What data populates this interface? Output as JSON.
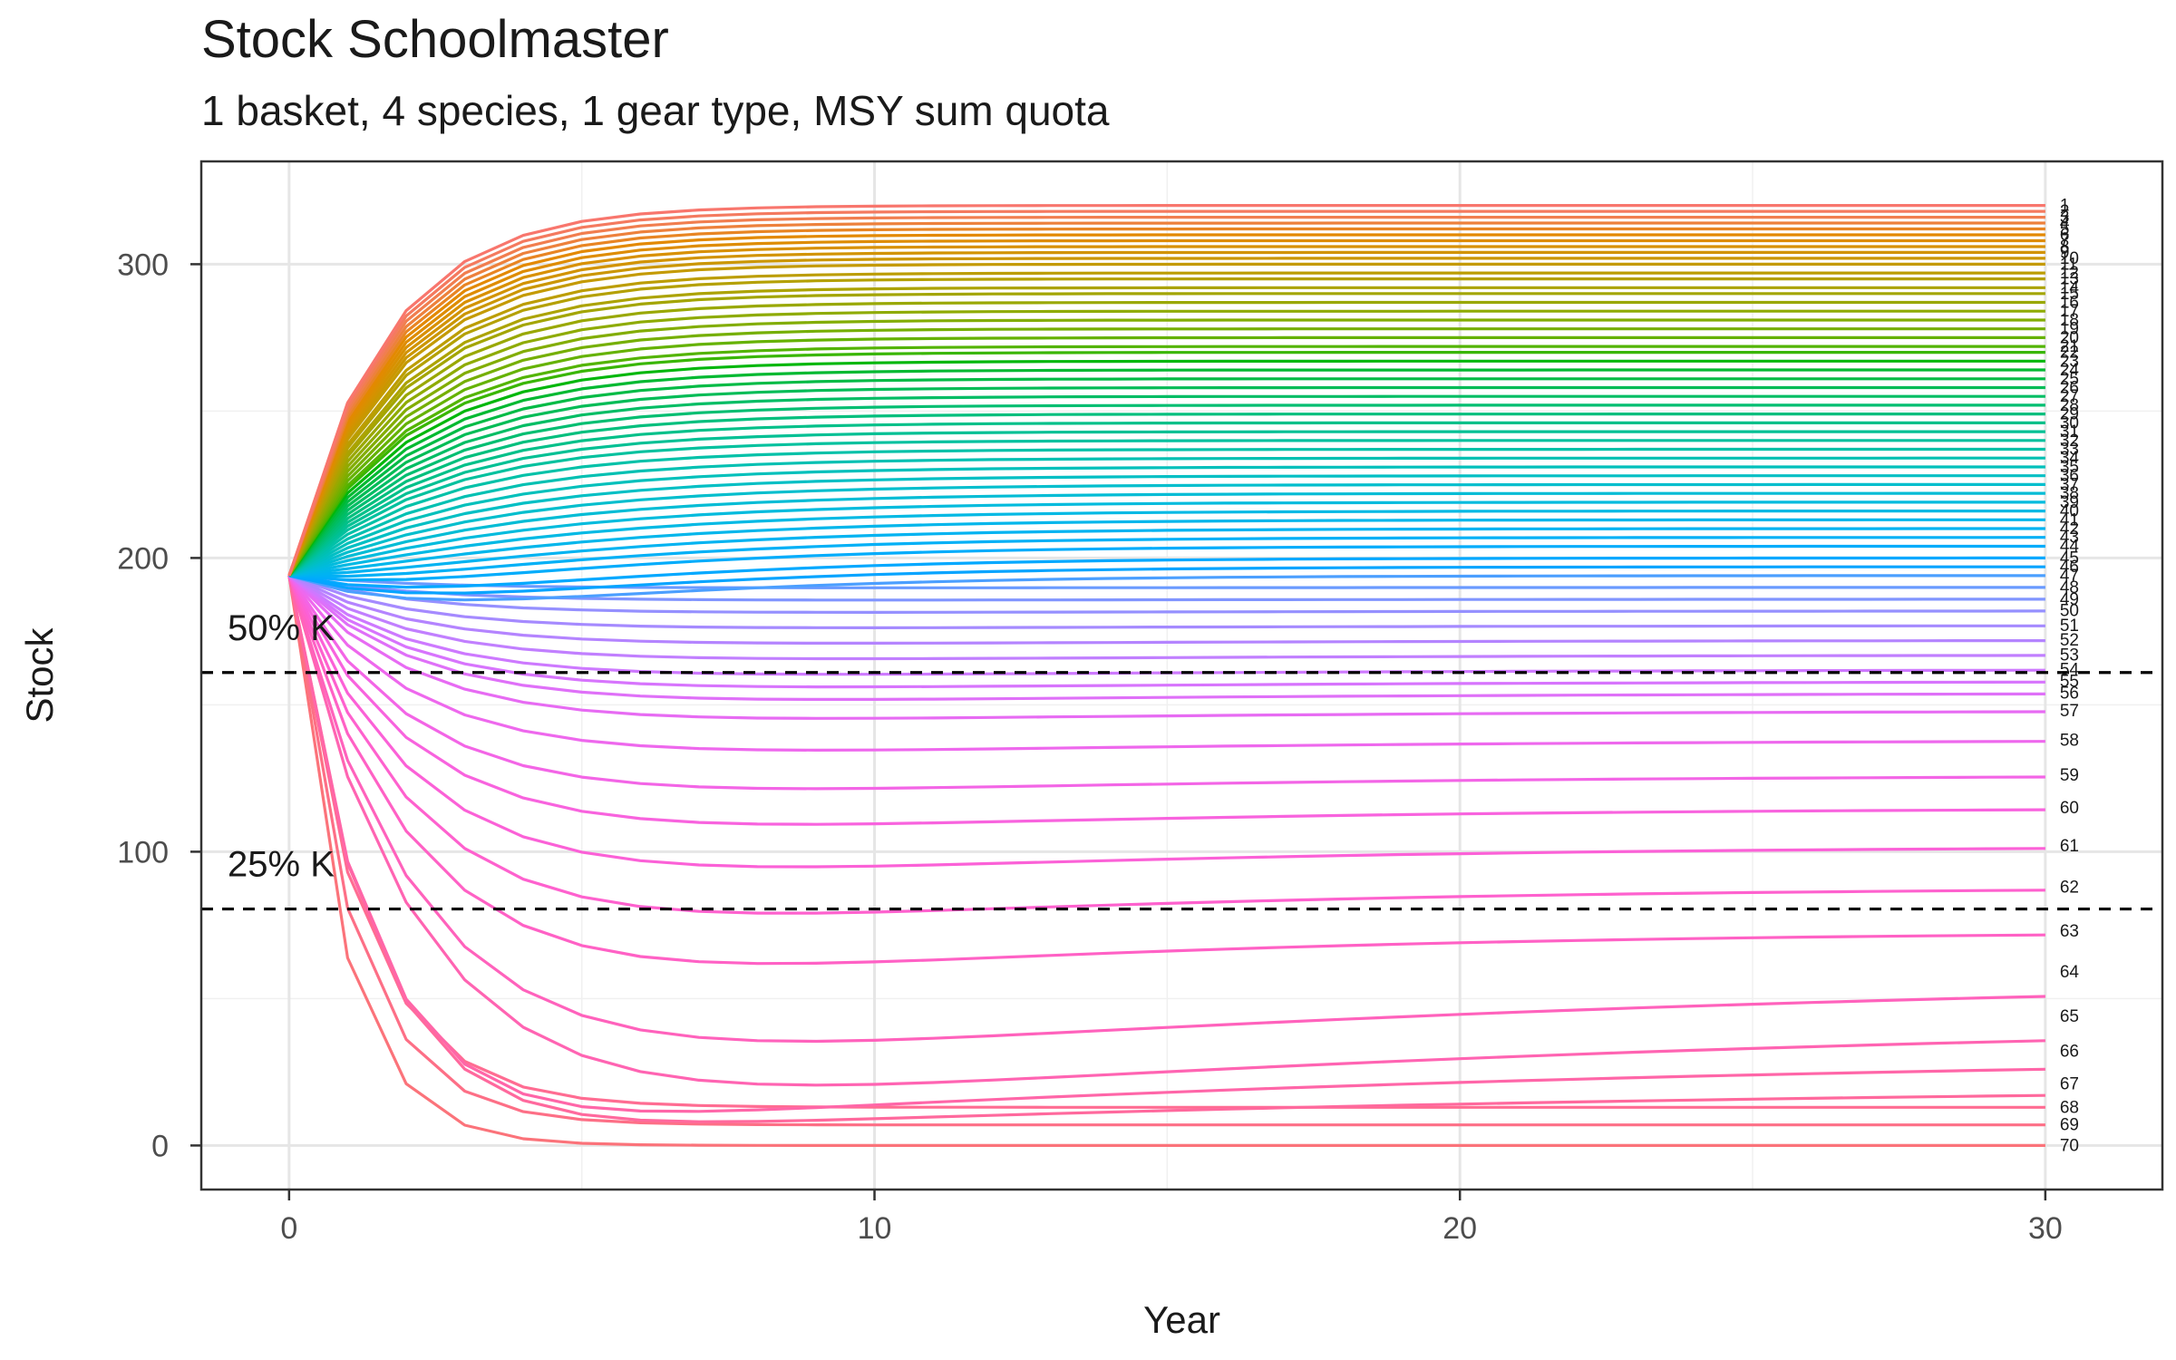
{
  "chart_data": {
    "type": "line",
    "title": "Stock Schoolmaster",
    "subtitle": "1 basket, 4 species, 1 gear type, MSY sum quota",
    "xlabel": "Year",
    "ylabel": "Stock",
    "xlim": [
      -1.5,
      32
    ],
    "ylim": [
      -15,
      335
    ],
    "x_ticks": [
      0,
      10,
      20,
      30
    ],
    "y_ticks": [
      0,
      100,
      200,
      300
    ],
    "x_tick_labels": [
      "0",
      "10",
      "20",
      "30"
    ],
    "y_tick_labels": [
      "0",
      "100",
      "200",
      "300"
    ],
    "grid": true,
    "legend": "none (line end labels)",
    "x": [
      0,
      1,
      2,
      3,
      4,
      5,
      6,
      7,
      8,
      9,
      10,
      11,
      12,
      13,
      14,
      15,
      16,
      17,
      18,
      19,
      20,
      21,
      22,
      23,
      24,
      25,
      26,
      27,
      28,
      29,
      30
    ],
    "initial_stock": 194,
    "series_count": 70,
    "series_labels": [
      "1",
      "2",
      "3",
      "4",
      "5",
      "6",
      "7",
      "8",
      "9",
      "10",
      "11",
      "12",
      "13",
      "14",
      "15",
      "16",
      "17",
      "18",
      "19",
      "20",
      "21",
      "22",
      "23",
      "24",
      "25",
      "26",
      "27",
      "28",
      "29",
      "30",
      "31",
      "32",
      "33",
      "34",
      "35",
      "36",
      "37",
      "38",
      "39",
      "40",
      "41",
      "42",
      "43",
      "44",
      "45",
      "46",
      "47",
      "48",
      "49",
      "50",
      "51",
      "52",
      "53",
      "54",
      "55",
      "56",
      "57",
      "58",
      "59",
      "60",
      "61",
      "62",
      "63",
      "64",
      "65",
      "66",
      "67",
      "68",
      "69",
      "70"
    ],
    "series_final_values": [
      320,
      318,
      316,
      314,
      312,
      310,
      308,
      306,
      304,
      302,
      300,
      297,
      295,
      292,
      290,
      287,
      284,
      281,
      278,
      275,
      272,
      270,
      267,
      264,
      261,
      258,
      255,
      252,
      249,
      246,
      243,
      240,
      237,
      234,
      231,
      228,
      225,
      222,
      219,
      216,
      213,
      210,
      207,
      204,
      200,
      197,
      194,
      190,
      186,
      182,
      177,
      172,
      167,
      162,
      158,
      154,
      148,
      138,
      126,
      115,
      102,
      88,
      73,
      59,
      44,
      32,
      21,
      13,
      7,
      0
    ],
    "reference_lines": [
      {
        "label": "50% K",
        "value": 161
      },
      {
        "label": "25% K",
        "value": 80.5
      }
    ]
  }
}
